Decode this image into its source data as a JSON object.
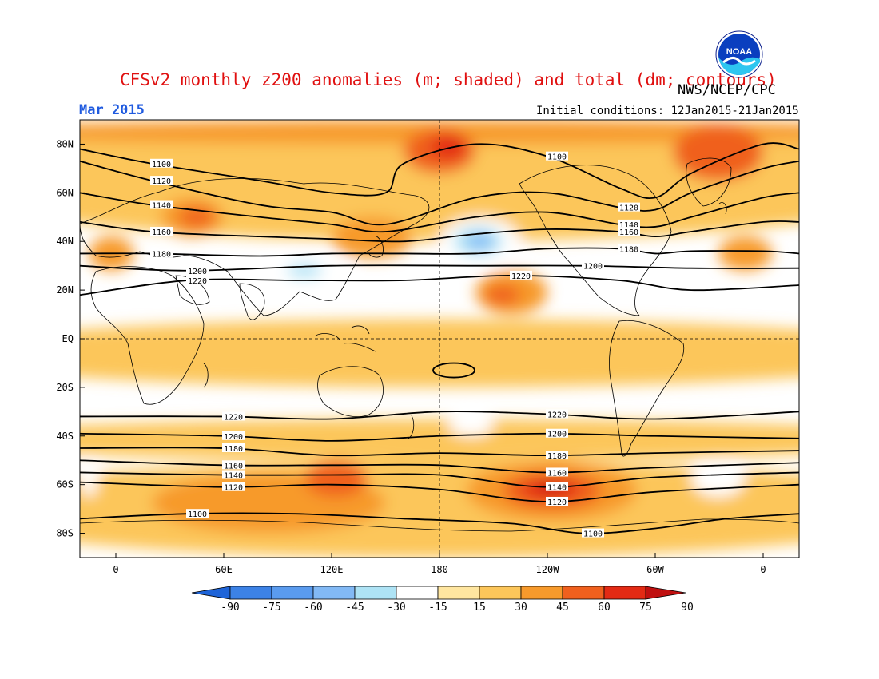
{
  "header": {
    "title": "CFSv2 monthly z200 anomalies (m; shaded) and total (dm; contours)",
    "agency": "NWS/NCEP/CPC",
    "month": "Mar 2015",
    "initial_conditions": "Initial conditions: 12Jan2015-21Jan2015",
    "logo_text": "NOAA"
  },
  "map": {
    "projection": "equirectangular",
    "lon_range": [
      -20,
      380
    ],
    "lat_range": [
      -90,
      90
    ],
    "lat_ticks": [
      {
        "lat": 80,
        "label": "80N"
      },
      {
        "lat": 60,
        "label": "60N"
      },
      {
        "lat": 40,
        "label": "40N"
      },
      {
        "lat": 20,
        "label": "20N"
      },
      {
        "lat": 0,
        "label": "EQ"
      },
      {
        "lat": -20,
        "label": "20S"
      },
      {
        "lat": -40,
        "label": "40S"
      },
      {
        "lat": -60,
        "label": "60S"
      },
      {
        "lat": -80,
        "label": "80S"
      }
    ],
    "lon_ticks": [
      {
        "lon": 0,
        "label": "0"
      },
      {
        "lon": 60,
        "label": "60E"
      },
      {
        "lon": 120,
        "label": "120E"
      },
      {
        "lon": 180,
        "label": "180"
      },
      {
        "lon": 240,
        "label": "120W"
      },
      {
        "lon": 300,
        "label": "60W"
      },
      {
        "lon": 360,
        "label": "0"
      }
    ],
    "reference_lines": {
      "equator_lat": 0,
      "dateline_lon": 180
    }
  },
  "colorbar": {
    "labels": [
      "-90",
      "-75",
      "-60",
      "-45",
      "-30",
      "-15",
      "15",
      "30",
      "45",
      "60",
      "75",
      "90"
    ],
    "colors": [
      "#1e64d8",
      "#3c82e6",
      "#5a9bee",
      "#82b9f5",
      "#aee3f5",
      "#ffffff",
      "#ffe6a0",
      "#fcc65a",
      "#f79a2c",
      "#f0601e",
      "#e32a14",
      "#c01010"
    ]
  },
  "anomaly_fields": [
    {
      "value": 30,
      "lon": [
        -20,
        380
      ],
      "lat": [
        -20,
        8
      ]
    },
    {
      "value": 30,
      "lon": [
        -20,
        380
      ],
      "lat": [
        -50,
        -33
      ]
    },
    {
      "value": 30,
      "lon": [
        -20,
        380
      ],
      "lat": [
        -90,
        -50
      ]
    },
    {
      "value": 30,
      "lon": [
        -20,
        380
      ],
      "lat": [
        40,
        90
      ]
    },
    {
      "value": 45,
      "lon": [
        -20,
        380
      ],
      "lat": [
        80,
        90
      ]
    },
    {
      "value": 60,
      "lon": [
        160,
        200
      ],
      "lat": [
        68,
        86
      ]
    },
    {
      "value": 75,
      "lon": [
        175,
        195
      ],
      "lat": [
        74,
        84
      ]
    },
    {
      "value": 60,
      "lon": [
        310,
        360
      ],
      "lat": [
        65,
        88
      ]
    },
    {
      "value": 45,
      "lon": [
        25,
        60
      ],
      "lat": [
        42,
        58
      ]
    },
    {
      "value": 60,
      "lon": [
        35,
        55
      ],
      "lat": [
        46,
        54
      ]
    },
    {
      "value": 45,
      "lon": [
        -15,
        10
      ],
      "lat": [
        28,
        42
      ]
    },
    {
      "value": 45,
      "lon": [
        335,
        365
      ],
      "lat": [
        28,
        42
      ]
    },
    {
      "value": 45,
      "lon": [
        120,
        165
      ],
      "lat": [
        33,
        50
      ]
    },
    {
      "value": 45,
      "lon": [
        200,
        240
      ],
      "lat": [
        10,
        28
      ]
    },
    {
      "value": 60,
      "lon": [
        205,
        225
      ],
      "lat": [
        14,
        22
      ]
    },
    {
      "value": 45,
      "lon": [
        20,
        150
      ],
      "lat": [
        -80,
        -55
      ]
    },
    {
      "value": 60,
      "lon": [
        105,
        140
      ],
      "lat": [
        -65,
        -50
      ]
    },
    {
      "value": 45,
      "lon": [
        195,
        290
      ],
      "lat": [
        -75,
        -50
      ]
    },
    {
      "value": 60,
      "lon": [
        215,
        270
      ],
      "lat": [
        -70,
        -55
      ]
    },
    {
      "value": 75,
      "lon": [
        225,
        258
      ],
      "lat": [
        -66,
        -58
      ]
    },
    {
      "value": 90,
      "lon": [
        235,
        250
      ],
      "lat": [
        -63,
        -59
      ]
    },
    {
      "value": -15,
      "lon": [
        180,
        225
      ],
      "lat": [
        30,
        50
      ]
    },
    {
      "value": -30,
      "lon": [
        188,
        215
      ],
      "lat": [
        34,
        46
      ]
    },
    {
      "value": -45,
      "lon": [
        195,
        210
      ],
      "lat": [
        37,
        43
      ]
    },
    {
      "value": -15,
      "lon": [
        85,
        130
      ],
      "lat": [
        22,
        34
      ]
    },
    {
      "value": -30,
      "lon": [
        95,
        115
      ],
      "lat": [
        25,
        31
      ]
    },
    {
      "value": -15,
      "lon": [
        185,
        210
      ],
      "lat": [
        -40,
        -32
      ]
    },
    {
      "value": -15,
      "lon": [
        -20,
        -10
      ],
      "lat": [
        -65,
        -50
      ]
    },
    {
      "value": -15,
      "lon": [
        320,
        350
      ],
      "lat": [
        -65,
        -50
      ]
    }
  ],
  "contours": [
    {
      "label": "1100",
      "points": [
        [
          -20,
          78
        ],
        [
          20,
          72
        ],
        [
          80,
          65
        ],
        [
          120,
          60
        ],
        [
          150,
          60
        ],
        [
          160,
          72
        ],
        [
          200,
          80
        ],
        [
          240,
          75
        ],
        [
          280,
          62
        ],
        [
          300,
          58
        ],
        [
          320,
          68
        ],
        [
          360,
          80
        ],
        [
          380,
          78
        ]
      ]
    },
    {
      "label": "1120",
      "points": [
        [
          -20,
          73
        ],
        [
          20,
          65
        ],
        [
          80,
          55
        ],
        [
          120,
          52
        ],
        [
          150,
          47
        ],
        [
          200,
          58
        ],
        [
          240,
          60
        ],
        [
          280,
          54
        ],
        [
          300,
          53
        ],
        [
          320,
          60
        ],
        [
          360,
          70
        ],
        [
          380,
          73
        ]
      ]
    },
    {
      "label": "1140",
      "points": [
        [
          -20,
          60
        ],
        [
          20,
          55
        ],
        [
          80,
          50
        ],
        [
          120,
          47
        ],
        [
          150,
          44
        ],
        [
          200,
          50
        ],
        [
          240,
          52
        ],
        [
          280,
          47
        ],
        [
          300,
          46
        ],
        [
          320,
          50
        ],
        [
          360,
          58
        ],
        [
          380,
          60
        ]
      ]
    },
    {
      "label": "1160",
      "points": [
        [
          -20,
          48
        ],
        [
          20,
          44
        ],
        [
          80,
          42
        ],
        [
          120,
          41
        ],
        [
          160,
          40
        ],
        [
          200,
          43
        ],
        [
          240,
          45
        ],
        [
          280,
          44
        ],
        [
          300,
          42
        ],
        [
          320,
          44
        ],
        [
          360,
          48
        ],
        [
          380,
          48
        ]
      ]
    },
    {
      "label": "1180",
      "points": [
        [
          -20,
          35
        ],
        [
          20,
          35
        ],
        [
          80,
          34
        ],
        [
          120,
          35
        ],
        [
          160,
          35
        ],
        [
          200,
          35
        ],
        [
          240,
          37
        ],
        [
          280,
          37
        ],
        [
          300,
          35
        ],
        [
          320,
          36
        ],
        [
          360,
          36
        ],
        [
          380,
          35
        ]
      ]
    },
    {
      "label": "1200",
      "points": [
        [
          -20,
          30
        ],
        [
          40,
          28
        ],
        [
          120,
          30
        ],
        [
          200,
          30
        ],
        [
          260,
          30
        ],
        [
          320,
          29
        ],
        [
          380,
          29
        ]
      ]
    },
    {
      "label": "1220",
      "points": [
        [
          -20,
          18
        ],
        [
          40,
          24
        ],
        [
          100,
          24
        ],
        [
          160,
          24
        ],
        [
          220,
          26
        ],
        [
          280,
          24
        ],
        [
          320,
          20
        ],
        [
          380,
          22
        ]
      ]
    },
    {
      "label": "1220",
      "points": [
        [
          -20,
          -32
        ],
        [
          60,
          -32
        ],
        [
          120,
          -33
        ],
        [
          180,
          -30
        ],
        [
          240,
          -31
        ],
        [
          300,
          -33
        ],
        [
          380,
          -30
        ]
      ]
    },
    {
      "label": "1200",
      "points": [
        [
          -20,
          -39
        ],
        [
          60,
          -40
        ],
        [
          120,
          -42
        ],
        [
          180,
          -40
        ],
        [
          240,
          -39
        ],
        [
          300,
          -40
        ],
        [
          380,
          -41
        ]
      ]
    },
    {
      "label": "1180",
      "points": [
        [
          -20,
          -45
        ],
        [
          60,
          -45
        ],
        [
          120,
          -48
        ],
        [
          180,
          -47
        ],
        [
          240,
          -48
        ],
        [
          300,
          -47
        ],
        [
          380,
          -46
        ]
      ]
    },
    {
      "label": "1160",
      "points": [
        [
          -20,
          -50
        ],
        [
          60,
          -52
        ],
        [
          120,
          -52
        ],
        [
          180,
          -52
        ],
        [
          240,
          -55
        ],
        [
          300,
          -53
        ],
        [
          380,
          -51
        ]
      ]
    },
    {
      "label": "1140",
      "points": [
        [
          -20,
          -55
        ],
        [
          60,
          -56
        ],
        [
          120,
          -56
        ],
        [
          180,
          -56
        ],
        [
          240,
          -61
        ],
        [
          300,
          -57
        ],
        [
          380,
          -55
        ]
      ]
    },
    {
      "label": "1120",
      "points": [
        [
          -20,
          -59
        ],
        [
          60,
          -61
        ],
        [
          120,
          -60
        ],
        [
          180,
          -62
        ],
        [
          240,
          -67
        ],
        [
          300,
          -63
        ],
        [
          380,
          -60
        ]
      ]
    },
    {
      "label": "1100",
      "points": [
        [
          -20,
          -74
        ],
        [
          40,
          -72
        ],
        [
          100,
          -72
        ],
        [
          160,
          -74
        ],
        [
          220,
          -76
        ],
        [
          260,
          -80
        ],
        [
          300,
          -78
        ],
        [
          340,
          -74
        ],
        [
          380,
          -72
        ]
      ]
    }
  ],
  "closed_contours": [
    {
      "label": "",
      "lon": 188,
      "lat": -13
    }
  ]
}
